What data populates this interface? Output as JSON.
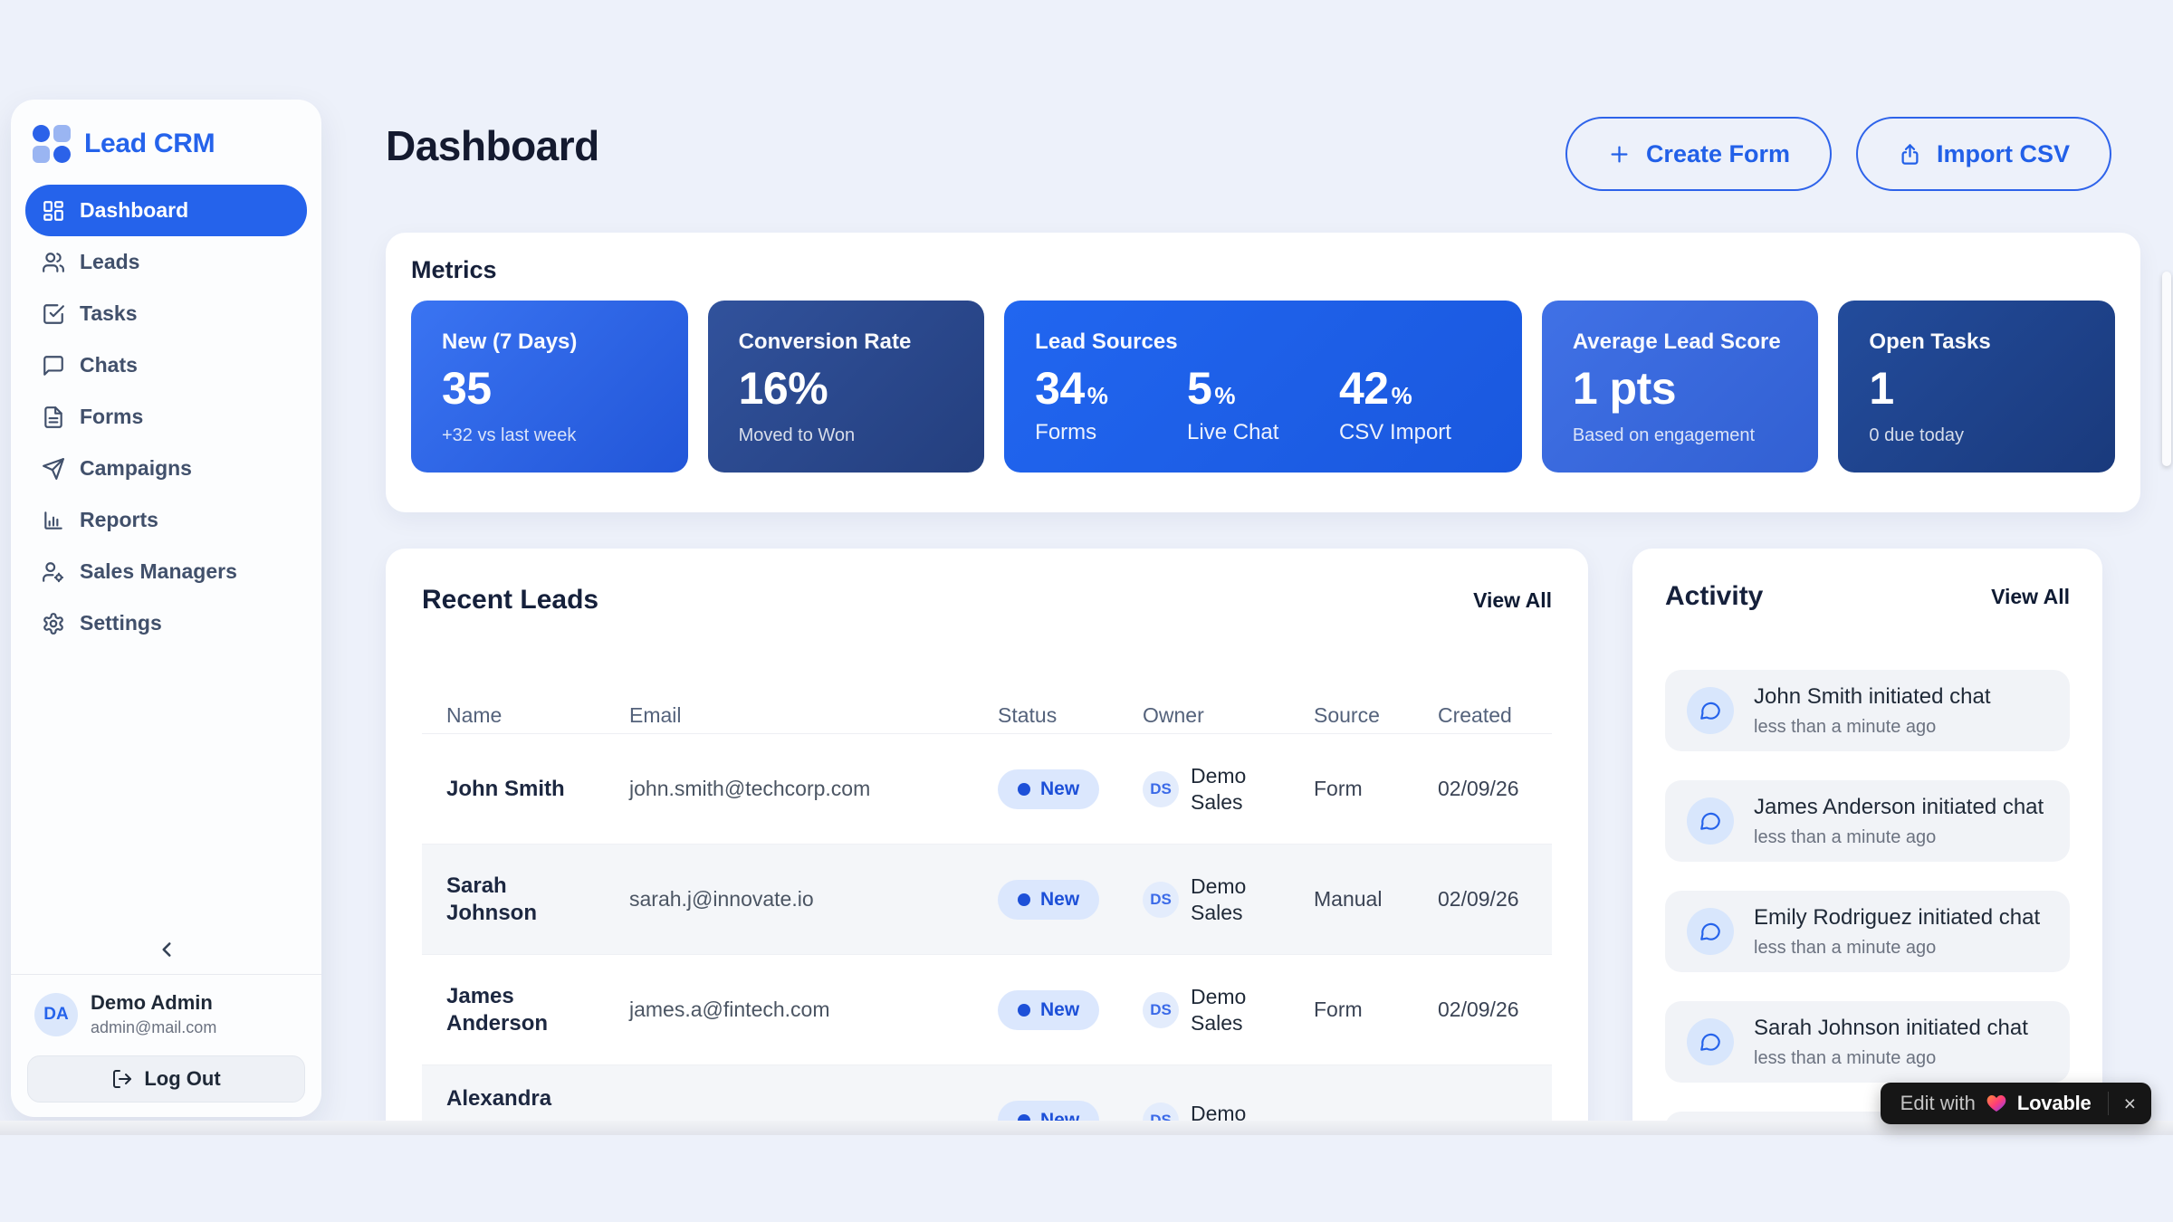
{
  "app": {
    "name": "Lead CRM"
  },
  "colors": {
    "accent": "#2563eb",
    "card_bright_blue": "#2166f0",
    "card_dark_navy": "#243f7e",
    "status_new_bg": "#dbe7fd",
    "status_new_text": "#1d50d8",
    "badge_bg": "#161616",
    "background": "#edf1fa"
  },
  "sidebar": {
    "logo_label": "Lead CRM",
    "items": [
      {
        "label": "Dashboard",
        "active": true
      },
      {
        "label": "Leads"
      },
      {
        "label": "Tasks"
      },
      {
        "label": "Chats"
      },
      {
        "label": "Forms"
      },
      {
        "label": "Campaigns"
      },
      {
        "label": "Reports"
      },
      {
        "label": "Sales Managers"
      },
      {
        "label": "Settings"
      }
    ],
    "user": {
      "initials": "DA",
      "name": "Demo Admin",
      "email": "admin@mail.com"
    },
    "logout_label": "Log Out"
  },
  "header": {
    "title": "Dashboard",
    "create_form_label": "Create Form",
    "import_csv_label": "Import CSV"
  },
  "metrics": {
    "section_title": "Metrics",
    "cards": [
      {
        "label": "New (7 Days)",
        "value": "35",
        "sub": "+32 vs last week"
      },
      {
        "label": "Conversion Rate",
        "value": "16%",
        "sub": "Moved to Won"
      },
      {
        "label": "Lead Sources",
        "items": [
          {
            "value": "34",
            "unit": "%",
            "label": "Forms"
          },
          {
            "value": "5",
            "unit": "%",
            "label": "Live Chat"
          },
          {
            "value": "42",
            "unit": "%",
            "label": "CSV Import"
          }
        ]
      },
      {
        "label": "Average Lead Score",
        "value": "1 pts",
        "sub": "Based on engagement"
      },
      {
        "label": "Open Tasks",
        "value": "1",
        "sub": "0 due today"
      }
    ]
  },
  "recent_leads": {
    "title": "Recent Leads",
    "view_all": "View All",
    "columns": [
      "Name",
      "Email",
      "Status",
      "Owner",
      "Source",
      "Created"
    ],
    "rows": [
      {
        "name": "John Smith",
        "email": "john.smith@techcorp.com",
        "status": "New",
        "owner": "Demo Sales",
        "owner_initials": "DS",
        "source": "Form",
        "created": "02/09/26"
      },
      {
        "name": "Sarah Johnson",
        "email": "sarah.j@innovate.io",
        "status": "New",
        "owner": "Demo Sales",
        "owner_initials": "DS",
        "source": "Manual",
        "created": "02/09/26"
      },
      {
        "name": "James Anderson",
        "email": "james.a@fintech.com",
        "status": "New",
        "owner": "Demo Sales",
        "owner_initials": "DS",
        "source": "Form",
        "created": "02/09/26"
      },
      {
        "name": "Alexandra",
        "email": "",
        "status": "New",
        "owner": "Demo Sales",
        "owner_initials": "DS",
        "source": "",
        "created": ""
      }
    ]
  },
  "activity": {
    "title": "Activity",
    "view_all": "View All",
    "items": [
      {
        "text": "John Smith initiated chat",
        "time": "less than a minute ago"
      },
      {
        "text": "James Anderson initiated chat",
        "time": "less than a minute ago"
      },
      {
        "text": "Emily Rodriguez initiated chat",
        "time": "less than a minute ago"
      },
      {
        "text": "Sarah Johnson initiated chat",
        "time": "less than a minute ago"
      }
    ]
  },
  "lovable_badge": {
    "prefix": "Edit with",
    "brand": "Lovable",
    "close": "×"
  }
}
